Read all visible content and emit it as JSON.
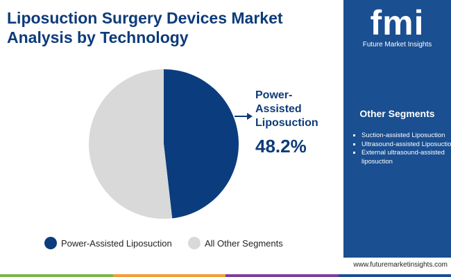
{
  "header": {
    "title": "Liposuction Surgery Devices Market Analysis by Technology"
  },
  "chart_data": {
    "type": "pie",
    "categories": [
      "Power-Assisted Liposuction",
      "All Other Segments"
    ],
    "values": [
      48.2,
      51.8
    ],
    "value_labels": [
      "48.2%",
      null
    ],
    "colors": [
      "#0b3d7e",
      "#d9d9d9"
    ]
  },
  "sidebar": {
    "logo": "fmi",
    "brand": "Future Market Insights",
    "heading": "Other Segments",
    "items": [
      "Suction-assisted Liposuction",
      "Ultrasound-assisted Liposuction",
      "External ultrasound-assisted liposuction"
    ],
    "url": "www.futuremarketinsights.com"
  }
}
